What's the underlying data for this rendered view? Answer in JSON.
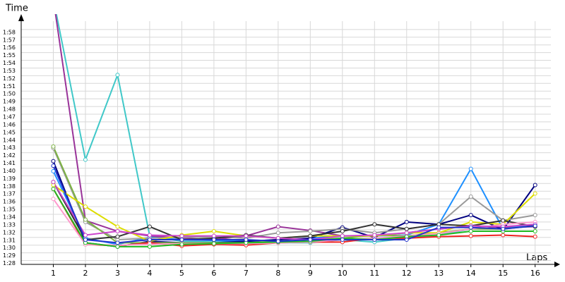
{
  "chart_data": {
    "type": "line",
    "y_label": "Time",
    "x_label": "Laps",
    "x": [
      1,
      2,
      3,
      4,
      5,
      6,
      7,
      8,
      9,
      10,
      11,
      12,
      13,
      14,
      15,
      16
    ],
    "xlim": [
      0,
      16.6
    ],
    "xticks": [
      1,
      2,
      3,
      4,
      5,
      6,
      7,
      8,
      9,
      10,
      11,
      12,
      13,
      14,
      15,
      16
    ],
    "ylim": [
      87.5,
      120
    ],
    "yticks": [
      {
        "value": 88,
        "label": "1:28"
      },
      {
        "value": 89,
        "label": "1:29"
      },
      {
        "value": 90,
        "label": "1:30"
      },
      {
        "value": 91,
        "label": "1:31"
      },
      {
        "value": 92,
        "label": "1:32"
      },
      {
        "value": 93,
        "label": "1:33"
      },
      {
        "value": 94,
        "label": "1:34"
      },
      {
        "value": 95,
        "label": "1:35"
      },
      {
        "value": 96,
        "label": "1:36"
      },
      {
        "value": 97,
        "label": "1:37"
      },
      {
        "value": 98,
        "label": "1:38"
      },
      {
        "value": 99,
        "label": "1:39"
      },
      {
        "value": 100,
        "label": "1:40"
      },
      {
        "value": 101,
        "label": "1:41"
      },
      {
        "value": 102,
        "label": "1:42"
      },
      {
        "value": 103,
        "label": "1:43"
      },
      {
        "value": 104,
        "label": "1:44"
      },
      {
        "value": 105,
        "label": "1:45"
      },
      {
        "value": 106,
        "label": "1:46"
      },
      {
        "value": 107,
        "label": "1:47"
      },
      {
        "value": 108,
        "label": "1:48"
      },
      {
        "value": 109,
        "label": "1:49"
      },
      {
        "value": 110,
        "label": "1:50"
      },
      {
        "value": 111,
        "label": "1:51"
      },
      {
        "value": 112,
        "label": "1:52"
      },
      {
        "value": 113,
        "label": "1:53"
      },
      {
        "value": 114,
        "label": "1:54"
      },
      {
        "value": 115,
        "label": "1:55"
      },
      {
        "value": 116,
        "label": "1:56"
      },
      {
        "value": 117,
        "label": "1:57"
      },
      {
        "value": 118,
        "label": "1:58"
      }
    ],
    "grid": true,
    "series": [
      {
        "color": "#40c8c8",
        "values": [
          122,
          101.1,
          112.1,
          91.2,
          90.5,
          90.4,
          90.4,
          90.3,
          90.3,
          90.7,
          90.4,
          90.9,
          91.3,
          92.1,
          92.3,
          92.7
        ]
      },
      {
        "color": "#993399",
        "values": [
          122,
          93.2,
          91.8,
          91.2,
          90.9,
          90.7,
          91.2,
          92.4,
          91.9,
          91.2,
          91.2,
          91.6,
          92.1,
          92.5,
          92.3,
          92.4
        ]
      },
      {
        "color": "#1e90ff",
        "values": [
          99.6,
          90.9,
          90.1,
          91.0,
          90.7,
          90.6,
          90.5,
          90.7,
          90.9,
          91.2,
          91.2,
          91.3,
          92.7,
          99.9,
          92.1,
          92.7
        ]
      },
      {
        "color": "#000080",
        "values": [
          100.9,
          90.3,
          89.8,
          90.5,
          90.3,
          90.3,
          90.5,
          90.7,
          90.9,
          92.3,
          91.0,
          93.0,
          92.7,
          93.9,
          92.0,
          97.8
        ]
      },
      {
        "color": "#999999",
        "values": [
          102.6,
          93.0,
          90.7,
          90.9,
          91.0,
          91.1,
          90.9,
          91.6,
          91.8,
          92.1,
          91.6,
          92.1,
          92.7,
          96.3,
          93.2,
          93.9
        ]
      },
      {
        "color": "#7cb342",
        "values": [
          102.8,
          93.3,
          90.3,
          90.3,
          90.3,
          90.3,
          90.3,
          90.5,
          90.7,
          90.9,
          91.3,
          91.2,
          91.6,
          92.1,
          92.1,
          92.5
        ]
      },
      {
        "color": "#dddd00",
        "values": [
          97.8,
          95.0,
          92.4,
          90.5,
          91.3,
          91.8,
          91.2,
          90.9,
          91.2,
          91.2,
          91.2,
          91.6,
          91.6,
          93.0,
          92.7,
          96.7
        ]
      },
      {
        "color": "#333333",
        "values": [
          98.2,
          90.7,
          91.1,
          92.4,
          90.7,
          90.9,
          91.3,
          90.9,
          91.2,
          91.8,
          92.7,
          92.1,
          92.7,
          92.5,
          93.2,
          92.4
        ]
      },
      {
        "color": "#ee2222",
        "values": [
          97.3,
          90.1,
          89.9,
          90.3,
          89.9,
          90.1,
          90.0,
          90.3,
          90.4,
          90.4,
          90.9,
          90.9,
          91.1,
          91.2,
          91.3,
          91.1
        ]
      },
      {
        "color": "#ff99cc",
        "values": [
          96.0,
          90.1,
          90.0,
          90.1,
          90.2,
          90.2,
          90.2,
          90.3,
          90.4,
          90.7,
          90.9,
          91.2,
          91.5,
          92.1,
          92.7,
          93.0
        ]
      },
      {
        "color": "#22bb22",
        "values": [
          97.3,
          90.3,
          89.8,
          89.8,
          90.1,
          90.2,
          90.3,
          90.4,
          90.5,
          90.9,
          90.7,
          91.1,
          91.3,
          91.8,
          91.8,
          91.8
        ]
      },
      {
        "color": "#cc44cc",
        "values": [
          98.2,
          91.3,
          91.8,
          91.3,
          91.2,
          91.2,
          91.2,
          90.9,
          90.7,
          91.2,
          91.3,
          91.6,
          92.1,
          92.5,
          92.4,
          92.7
        ]
      },
      {
        "color": "#2233cc",
        "values": [
          100.3,
          90.7,
          90.3,
          90.7,
          90.7,
          90.7,
          90.7,
          90.5,
          90.7,
          90.7,
          90.7,
          90.7,
          92.3,
          92.3,
          92.1,
          92.5
        ]
      }
    ]
  }
}
